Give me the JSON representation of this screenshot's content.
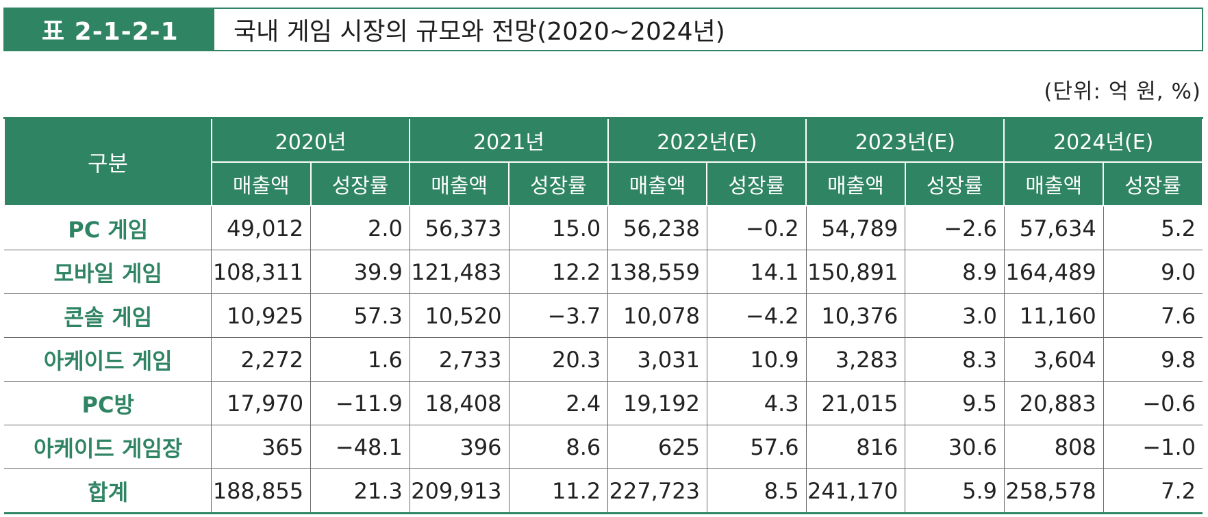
{
  "table_label": "표 2-1-2-1",
  "title": "국내 게임 시장의 규모와 전망(2020~2024년)",
  "unit": "(단위: 억 원, %)",
  "header": {
    "corner": "구분",
    "years": [
      "2020년",
      "2021년",
      "2022년(E)",
      "2023년(E)",
      "2024년(E)"
    ],
    "sub": [
      "매출액",
      "성장률"
    ]
  },
  "rows": [
    {
      "label": "PC 게임",
      "values": [
        "49,012",
        "2.0",
        "56,373",
        "15.0",
        "56,238",
        "−0.2",
        "54,789",
        "−2.6",
        "57,634",
        "5.2"
      ]
    },
    {
      "label": "모바일 게임",
      "values": [
        "108,311",
        "39.9",
        "121,483",
        "12.2",
        "138,559",
        "14.1",
        "150,891",
        "8.9",
        "164,489",
        "9.0"
      ]
    },
    {
      "label": "콘솔 게임",
      "values": [
        "10,925",
        "57.3",
        "10,520",
        "−3.7",
        "10,078",
        "−4.2",
        "10,376",
        "3.0",
        "11,160",
        "7.6"
      ]
    },
    {
      "label": "아케이드 게임",
      "values": [
        "2,272",
        "1.6",
        "2,733",
        "20.3",
        "3,031",
        "10.9",
        "3,283",
        "8.3",
        "3,604",
        "9.8"
      ]
    },
    {
      "label": "PC방",
      "values": [
        "17,970",
        "−11.9",
        "18,408",
        "2.4",
        "19,192",
        "4.3",
        "21,015",
        "9.5",
        "20,883",
        "−0.6"
      ]
    },
    {
      "label": "아케이드 게임장",
      "values": [
        "365",
        "−48.1",
        "396",
        "8.6",
        "625",
        "57.6",
        "816",
        "30.6",
        "808",
        "−1.0"
      ]
    },
    {
      "label": "합계",
      "values": [
        "188,855",
        "21.3",
        "209,913",
        "11.2",
        "227,723",
        "8.5",
        "241,170",
        "5.9",
        "258,578",
        "7.2"
      ]
    }
  ]
}
